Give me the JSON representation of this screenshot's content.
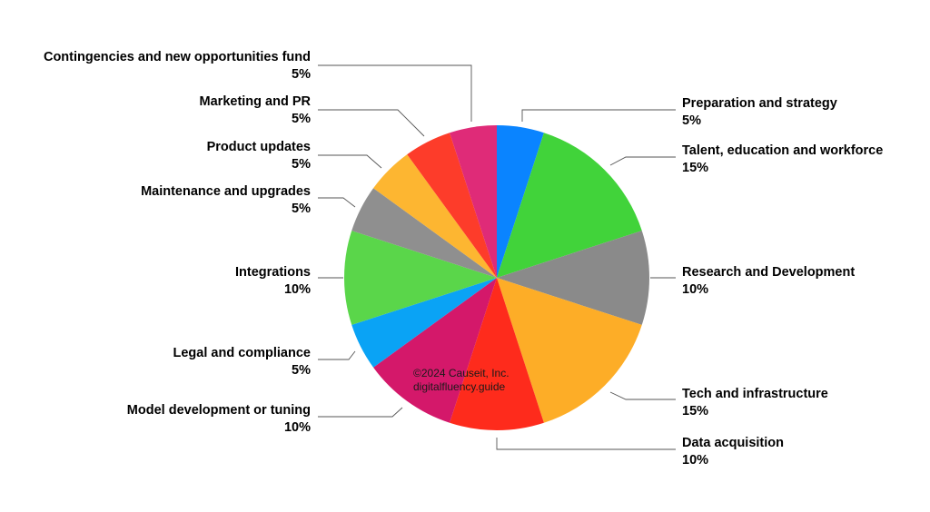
{
  "chart_data": {
    "type": "pie",
    "title": "",
    "start": "top",
    "direction": "clockwise",
    "slices": [
      {
        "label": "Preparation and strategy",
        "value": 5,
        "value_label": "5%",
        "color": "#0a84ff"
      },
      {
        "label": "Talent, education and workforce",
        "value": 15,
        "value_label": "15%",
        "color": "#41d33a"
      },
      {
        "label": "Research and Development",
        "value": 10,
        "value_label": "10%",
        "color": "#8a8a8a"
      },
      {
        "label": "Tech and infrastructure",
        "value": 15,
        "value_label": "15%",
        "color": "#fdad27"
      },
      {
        "label": "Data acquisition",
        "value": 10,
        "value_label": "10%",
        "color": "#fe2b1c"
      },
      {
        "label": "Model development or tuning",
        "value": 10,
        "value_label": "10%",
        "color": "#d4186a"
      },
      {
        "label": "Legal and compliance",
        "value": 5,
        "value_label": "5%",
        "color": "#0aa3f5"
      },
      {
        "label": "Integrations",
        "value": 10,
        "value_label": "10%",
        "color": "#5ad64a"
      },
      {
        "label": "Maintenance and upgrades",
        "value": 5,
        "value_label": "5%",
        "color": "#8f8f8f"
      },
      {
        "label": "Product updates",
        "value": 5,
        "value_label": "5%",
        "color": "#fdb631"
      },
      {
        "label": "Marketing and PR",
        "value": 5,
        "value_label": "5%",
        "color": "#fd3c2a"
      },
      {
        "label": "Contingencies and new opportunities fund",
        "value": 5,
        "value_label": "5%",
        "color": "#df2b78"
      }
    ]
  },
  "watermark": {
    "line1": "©2024 Causeit, Inc.",
    "line2": "digitalfluency.guide"
  }
}
